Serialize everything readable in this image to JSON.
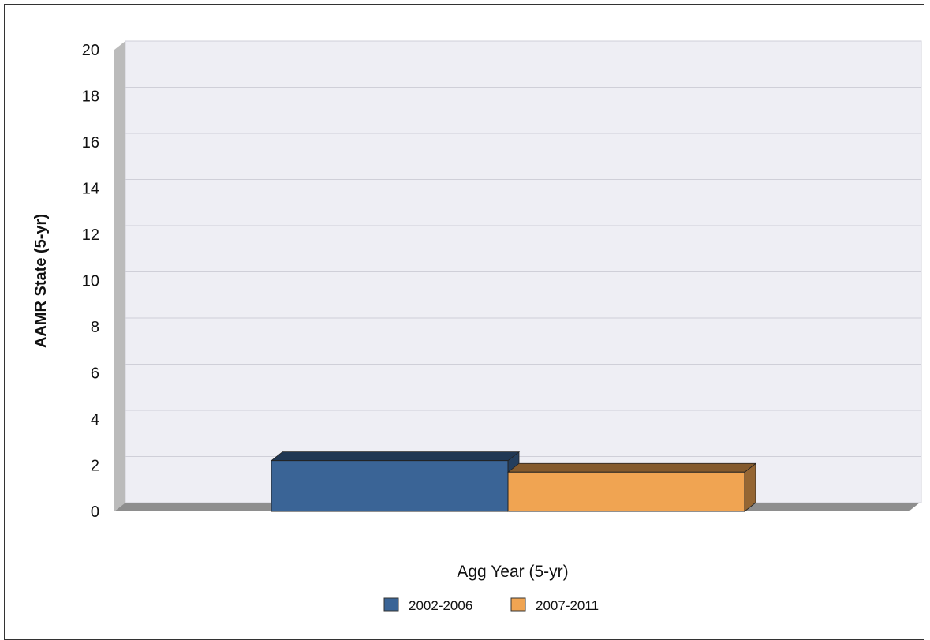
{
  "chart_data": {
    "type": "bar",
    "title": "",
    "xlabel": "Agg Year (5-yr)",
    "ylabel": "AAMR State (5-yr)",
    "ylim": [
      0,
      20
    ],
    "ytick_step": 2,
    "grid": true,
    "legend_position": "bottom",
    "three_d": true,
    "series": [
      {
        "name": "2002-2006",
        "values": [
          2.2
        ],
        "color": "#3A6496"
      },
      {
        "name": "2007-2011",
        "values": [
          1.7
        ],
        "color": "#F0A452"
      }
    ]
  }
}
